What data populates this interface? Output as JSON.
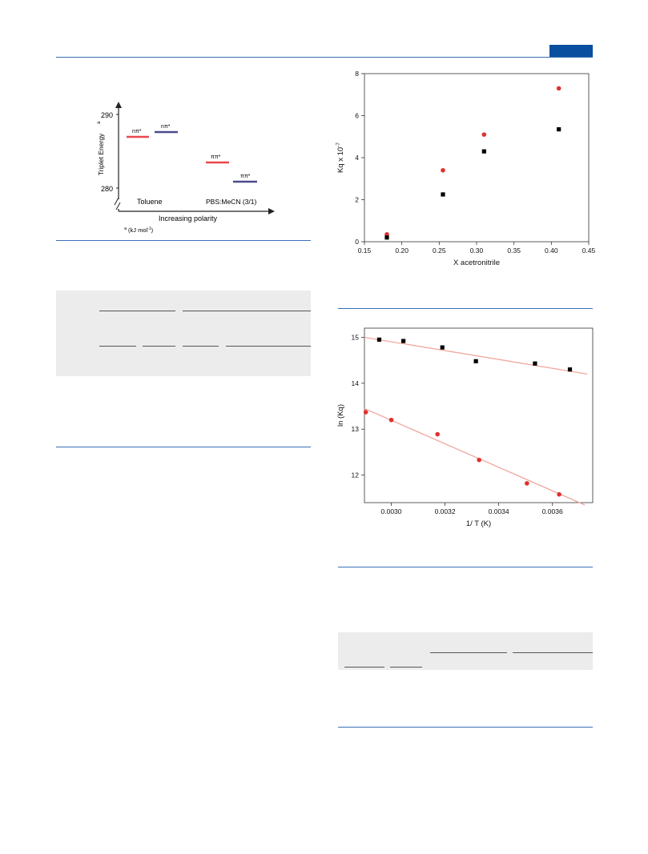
{
  "header": {
    "accent_color": "#0a4ea0",
    "rule_color": "#3a6fb6"
  },
  "energy_diagram": {
    "y_axis_label": "Triplet Energy",
    "y_axis_superscript": "a",
    "y_tick_top": "290",
    "y_tick_bottom": "280",
    "x_axis_label": "Increasing polarity",
    "solvent_left": "Toluene",
    "solvent_right": "PBS:MeCN (3/1)",
    "level_labels": {
      "left_red": "nπ*",
      "left_blue": "nπ*",
      "right_red": "ππ*",
      "right_blue": "ππ*"
    },
    "footnote_mark": "a",
    "footnote_text": "(kJ mol",
    "footnote_exp": "-1",
    "footnote_close": ")",
    "colors": {
      "red": "#e8474d",
      "blue": "#4a4a8c"
    }
  },
  "chart_data": [
    {
      "type": "scatter",
      "xlabel": "X acetronitrile",
      "ylabel": "Kq x 10",
      "ylabel_exp": "-7",
      "xlim": [
        0.15,
        0.45
      ],
      "ylim": [
        0,
        8
      ],
      "x_ticks": [
        "0.15",
        "0.20",
        "0.25",
        "0.30",
        "0.35",
        "0.40",
        "0.45"
      ],
      "y_ticks": [
        "0",
        "2",
        "4",
        "6",
        "8"
      ],
      "series": [
        {
          "color": "#e03030",
          "marker": "circle",
          "points": [
            [
              0.18,
              0.35
            ],
            [
              0.255,
              3.4
            ],
            [
              0.31,
              5.1
            ],
            [
              0.41,
              7.3
            ]
          ]
        },
        {
          "color": "#000000",
          "marker": "square",
          "points": [
            [
              0.18,
              0.2
            ],
            [
              0.255,
              2.25
            ],
            [
              0.31,
              4.3
            ],
            [
              0.41,
              5.35
            ]
          ]
        }
      ]
    },
    {
      "type": "scatter",
      "xlabel": "1/ T (K)",
      "ylabel": "ln (Kq)",
      "xlim": [
        0.0029,
        0.00375
      ],
      "ylim": [
        11.4,
        15.2
      ],
      "x_ticks": [
        "0.0030",
        "0.0032",
        "0.0034",
        "0.0036"
      ],
      "y_ticks": [
        "12",
        "13",
        "14",
        "15"
      ],
      "fit_color": "#f0a8a0",
      "series": [
        {
          "color": "#000000",
          "marker": "square",
          "points": [
            [
              0.002955,
              14.95
            ],
            [
              0.003045,
              14.92
            ],
            [
              0.00319,
              14.78
            ],
            [
              0.003315,
              14.48
            ],
            [
              0.003535,
              14.43
            ],
            [
              0.003665,
              14.3
            ]
          ],
          "fit": [
            [
              0.0029,
              15.0
            ],
            [
              0.00373,
              14.2
            ]
          ]
        },
        {
          "color": "#e03030",
          "marker": "circle",
          "points": [
            [
              0.002905,
              13.37
            ],
            [
              0.003,
              13.2
            ],
            [
              0.003172,
              12.89
            ],
            [
              0.003327,
              12.33
            ],
            [
              0.003505,
              11.82
            ],
            [
              0.003625,
              11.58
            ]
          ],
          "fit": [
            [
              0.0029,
              13.45
            ],
            [
              0.00372,
              11.35
            ]
          ]
        }
      ]
    }
  ]
}
